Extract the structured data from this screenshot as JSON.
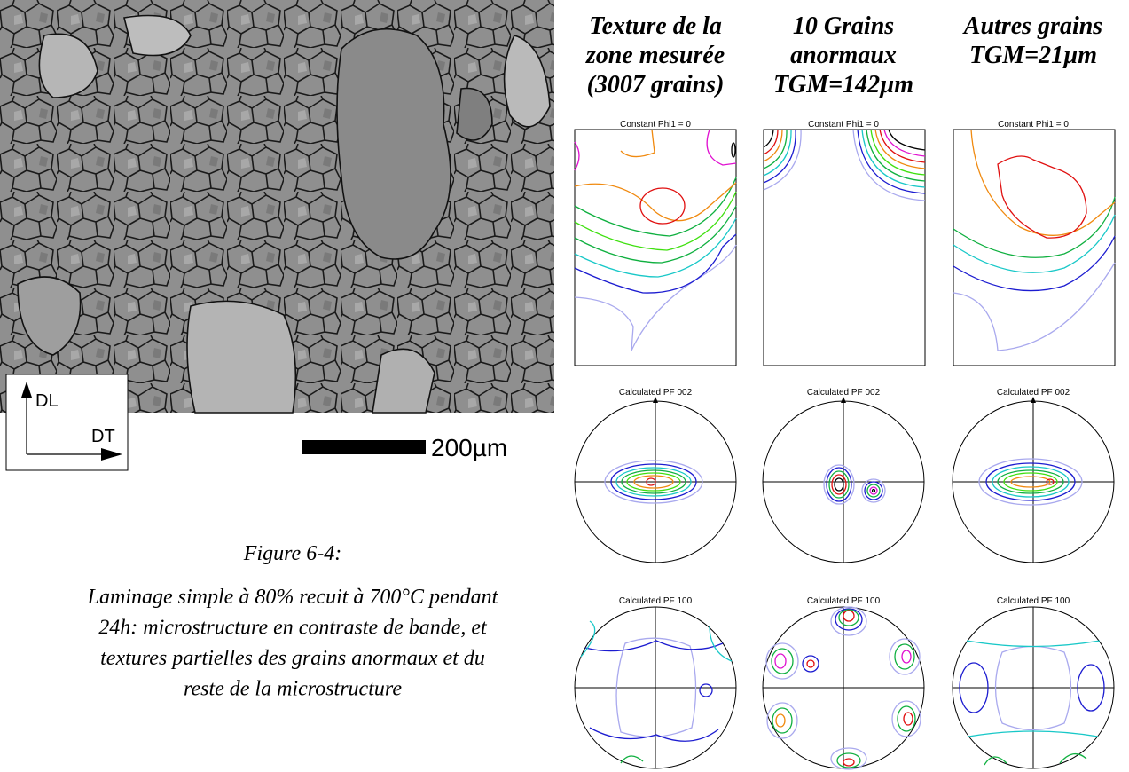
{
  "micrograph": {
    "axis_dl": "DL",
    "axis_dt": "DT",
    "scale_bar": "200µm"
  },
  "caption": {
    "number": "Figure 6-4:",
    "lines": [
      "Laminage simple à 80% recuit à 700°C pendant",
      "24h: microstructure en contraste de bande, et",
      "textures partielles des grains anormaux et du",
      "reste de la microstructure"
    ]
  },
  "columns": [
    {
      "heading": [
        "Texture de la",
        "zone mesurée",
        "(3007 grains)"
      ],
      "odf_title": "Constant Phi1 = 0",
      "pf002_title": "Calculated PF 002",
      "pf100_title": "Calculated PF 100"
    },
    {
      "heading": [
        "10 Grains",
        "anormaux",
        "TGM=142µm"
      ],
      "odf_title": "Constant Phi1 = 0",
      "pf002_title": "Calculated PF 002",
      "pf100_title": "Calculated PF 100"
    },
    {
      "heading": [
        "Autres grains",
        "TGM=21µm"
      ],
      "odf_title": "Constant Phi1 = 0",
      "pf002_title": "Calculated PF 002",
      "pf100_title": "Calculated PF 100"
    }
  ]
}
